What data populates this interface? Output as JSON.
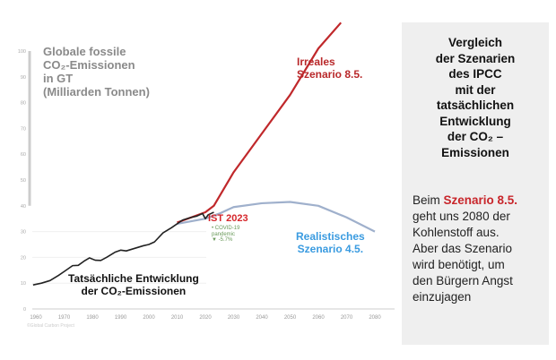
{
  "chart_data": {
    "type": "line",
    "title": [
      "Globale fossile",
      "CO₂-Emissionen",
      "in GT",
      "(Milliarden Tonnen)"
    ],
    "ylim": [
      0,
      100
    ],
    "xlim": [
      1958,
      2085
    ],
    "yticks": [
      "0",
      "10",
      "20",
      "30",
      "40",
      "50",
      "60",
      "70",
      "80",
      "90",
      "100"
    ],
    "xticks": [
      "1960",
      "1970",
      "1980",
      "1990",
      "2000",
      "2010",
      "2020",
      "2030",
      "2040",
      "2050",
      "2060",
      "2070",
      "2080"
    ],
    "series": [
      {
        "name": "Tatsächliche Entwicklung",
        "color": "#222222",
        "x": [
          1959,
          1962,
          1965,
          1968,
          1970,
          1973,
          1975,
          1977,
          1979,
          1981,
          1983,
          1985,
          1988,
          1990,
          1992,
          1995,
          1998,
          2000,
          2002,
          2005,
          2008,
          2010,
          2012,
          2015,
          2017,
          2019,
          2020,
          2021,
          2022,
          2023
        ],
        "y": [
          9.3,
          10,
          11,
          13,
          14.5,
          16.8,
          16.9,
          18.5,
          19.8,
          18.9,
          18.8,
          20,
          22,
          22.8,
          22.5,
          23.5,
          24.5,
          25,
          26,
          29.5,
          31.5,
          33,
          34.5,
          35.5,
          36,
          37,
          35,
          36.5,
          37,
          37.5
        ]
      },
      {
        "name": "Irreales Szenario 8.5.",
        "color": "#c0282b",
        "x": [
          2010,
          2015,
          2020,
          2023,
          2030,
          2040,
          2050,
          2060,
          2068
        ],
        "y": [
          33.5,
          35.5,
          37.5,
          40,
          53,
          68,
          83,
          101,
          111
        ]
      },
      {
        "name": "Realistisches Szenario 4.5.",
        "color": "#9fb0cc",
        "x": [
          2010,
          2015,
          2020,
          2025,
          2030,
          2040,
          2050,
          2060,
          2070,
          2080
        ],
        "y": [
          33,
          34,
          35,
          37,
          39.5,
          41,
          41.5,
          40,
          35.5,
          30
        ]
      }
    ],
    "annotations": {
      "irreal": [
        "Irreales",
        "Szenario 8.5."
      ],
      "ist": "IST 2023",
      "covid": [
        "• COVID-19",
        "pandemic",
        "▼ -5.7%"
      ],
      "real": [
        "Realistisches",
        "Szenario 4.5."
      ],
      "tat": [
        "Tatsächliche Entwicklung",
        "der CO₂-Emissionen"
      ],
      "credit": "©Global Carbon Project"
    }
  },
  "panel": {
    "heading": [
      "Vergleich",
      "der Szenarien",
      "des IPCC",
      "mit der",
      "tatsächlichen",
      "Entwicklung",
      "der CO₂ –",
      "Emissionen"
    ],
    "body_prefix": "Beim ",
    "body_highlight": "Szenario 8.5.",
    "body_lines": [
      "geht uns 2080 der",
      "Kohlenstoff aus.",
      "Aber das Szenario",
      "wird benötigt, um",
      "den Bürgern Angst",
      "einzujagen"
    ]
  }
}
